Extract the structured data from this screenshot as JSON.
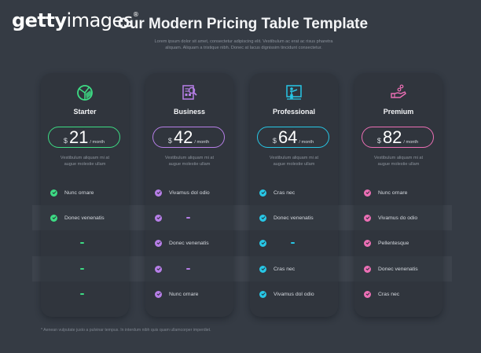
{
  "watermark": {
    "bold": "getty",
    "thin": "images",
    "mark": "®"
  },
  "header": {
    "title": "Our Modern Pricing Table Template",
    "subtitle_line1": "Lorem ipsum dolor sit amet, consectetur adipiscing elit. Vestibulum ac erat ac risus pharetra",
    "subtitle_line2": "aliquam. Aliquam a tristique nibh. Donec at lacus dignissim tincidunt consectetur."
  },
  "plans": [
    {
      "name": "Starter",
      "icon": "pie-chart-icon",
      "color": "#3ddc84",
      "currency": "$",
      "price": "21",
      "period": "/ month",
      "desc_line1": "Vestibulum aliquam mi at",
      "desc_line2": "augue molestie ullam",
      "features": [
        {
          "included": true,
          "label": "Nunc ornare"
        },
        {
          "included": true,
          "label": "Donec venenatis"
        },
        {
          "included": false,
          "label": "–"
        },
        {
          "included": false,
          "label": "–"
        },
        {
          "included": false,
          "label": "–"
        }
      ]
    },
    {
      "name": "Business",
      "icon": "document-search-icon",
      "color": "#b77fe8",
      "currency": "$",
      "price": "42",
      "period": "/ month",
      "desc_line1": "Vestibulum aliquam mi at",
      "desc_line2": "augue molestie ullam",
      "features": [
        {
          "included": true,
          "label": "Vivamus dol odio"
        },
        {
          "included": true,
          "label": "–"
        },
        {
          "included": true,
          "label": "Donec venenatis"
        },
        {
          "included": true,
          "label": "–"
        },
        {
          "included": true,
          "label": "Nunc ornare"
        }
      ]
    },
    {
      "name": "Professional",
      "icon": "presentation-board-icon",
      "color": "#27c7e6",
      "currency": "$",
      "price": "64",
      "period": "/ month",
      "desc_line1": "Vestibulum aliquam mi at",
      "desc_line2": "augue molestie ullam",
      "features": [
        {
          "included": true,
          "label": "Cras nec"
        },
        {
          "included": true,
          "label": "Donec venenatis"
        },
        {
          "included": true,
          "label": "–"
        },
        {
          "included": true,
          "label": "Cras nec"
        },
        {
          "included": true,
          "label": "Vivamus dol odio"
        }
      ]
    },
    {
      "name": "Premium",
      "icon": "hand-coins-icon",
      "color": "#ec6fb5",
      "currency": "$",
      "price": "82",
      "period": "/ month",
      "desc_line1": "Vestibulum aliquam mi at",
      "desc_line2": "augue molestie ullam",
      "features": [
        {
          "included": true,
          "label": "Nunc ornare"
        },
        {
          "included": true,
          "label": "Vivamus do odio"
        },
        {
          "included": true,
          "label": "Pellentesque"
        },
        {
          "included": true,
          "label": "Donec venenatis"
        },
        {
          "included": true,
          "label": "Cras nec"
        }
      ]
    }
  ],
  "footnote": "* Aenean vulputate justo a pulvinar tempus. In interdum nibh quis quam ullamcorper imperdiet."
}
